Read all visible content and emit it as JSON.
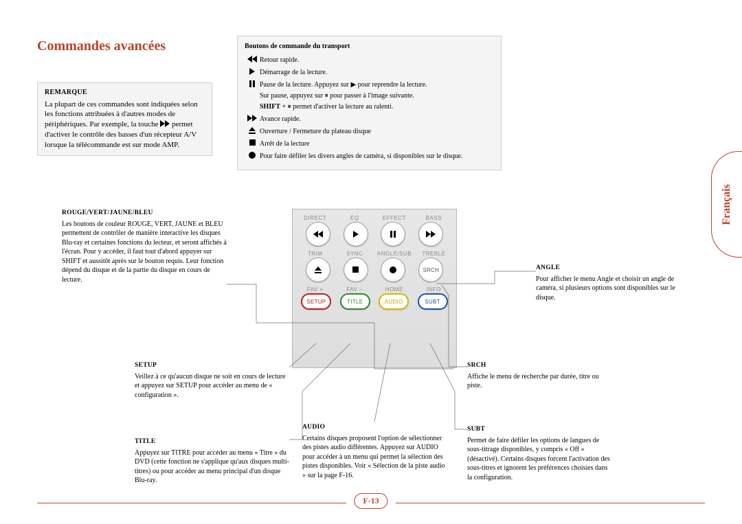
{
  "page": {
    "title": "Commandes avancées",
    "number": "F-13",
    "language_tab": "Français",
    "accent_color": "#be4128",
    "bg_color": "#ffffff"
  },
  "note": {
    "heading": "REMARQUE",
    "body_pre": "La plupart de ces commandes sont indiquées selon les fonctions attribuées à d'autres modes de périphériques. Par exemple, la touche ",
    "body_post": " permet d'activer le contrôle des basses d'un récepteur A/V lorsque la télécommande est sur mode AMP."
  },
  "transport": {
    "heading": "Boutons de commande du transport",
    "rows": [
      {
        "icon": "rewind",
        "desc": "Retour rapide."
      },
      {
        "icon": "play",
        "desc": "Démarrage de la lecture."
      },
      {
        "icon": "pause",
        "desc": "Pause de la lecture. Appuyez sur ▶ pour reprendre la lecture.",
        "sub1": "Sur pause, appuyez sur  ⏸  pour passer à l'image suivante.",
        "sub2_prefix": "SHIFT",
        "sub2_rest": " + ⏸ permet d'activer la lecture au ralenti."
      },
      {
        "icon": "ffwd",
        "desc": "Avance rapide."
      },
      {
        "icon": "eject",
        "desc": "Ouverture / Fermeture du plateau disque"
      },
      {
        "icon": "stop",
        "desc": "Arrêt de la lecture"
      },
      {
        "icon": "dot",
        "desc": "Pour faire défiler les divers angles de caméra, si disponibles sur le disque."
      }
    ]
  },
  "remote": {
    "row1_labels": [
      "DIRECT",
      "EQ",
      "EFFECT",
      "BASS"
    ],
    "row1_icons": [
      "rewind",
      "play",
      "pause",
      "ffwd"
    ],
    "row2_labels": [
      "TRIM",
      "SYNC",
      "ANGLE/SUB",
      "TREBLE"
    ],
    "row2_icons": [
      "eject",
      "stop",
      "dot",
      "SRCH"
    ],
    "row3_labels": [
      "FAV +",
      "FAV –",
      "HOME",
      "INFO"
    ],
    "row3_btns": [
      {
        "text": "SETUP",
        "class": "red"
      },
      {
        "text": "TITLE",
        "class": "green"
      },
      {
        "text": "AUDIO",
        "class": "yellow"
      },
      {
        "text": "SUBT",
        "class": "blue"
      }
    ]
  },
  "callouts": {
    "rouge": {
      "h": "ROUGE/VERT/JAUNE/BLEU",
      "p": "Les boutons de couleur ROUGE, VERT, JAUNE et BLEU permettent de contrôler de manière interactive les disques Blu-ray et certaines fonctions du lecteur, et seront affichés à l'écran. Pour y accéder, il faut tout d'abord appuyer sur SHIFT et aussitôt après sur le bouton requis. Leur fonction dépend du disque et de la partie du disque en cours de lecture."
    },
    "setup": {
      "h": "SETUP",
      "p": "Veillez à ce qu'aucun disque ne soit en cours de lecture et appuyez sur SETUP pour accéder au menu de « configuration »."
    },
    "title": {
      "h": "TITLE",
      "p": "Appuyez sur TITRE pour accéder au menu « Titre » du DVD (cette fonction ne s'applique qu'aux disques multi-titres) ou pour accéder au menu principal d'un disque Blu-ray."
    },
    "audio": {
      "h": "AUDIO",
      "p": "Certains disques proposent l'option de sélectionner des pistes audio différentes. Appuyez sur AUDIO pour accéder à un menu qui permet la sélection des pistes disponibles. Voir « Sélection de la piste audio » sur la page F-16."
    },
    "angle": {
      "h": "ANGLE",
      "p": "Pour afficher le menu Angle et choisir un angle de caméra, si plusieurs options sont disponibles sur le disque."
    },
    "srch": {
      "h": "SRCH",
      "p": "Affiche le menu de recherche par durée, titre ou piste."
    },
    "subt": {
      "h": "SUBT",
      "p": "Permet de faire défiler les options de langues de sous-titrage disponibles, y compris « Off » (désactivé). Certains disques forcent l'activation des sous-titres et ignorent les préférences choisies dans la configuration."
    }
  }
}
